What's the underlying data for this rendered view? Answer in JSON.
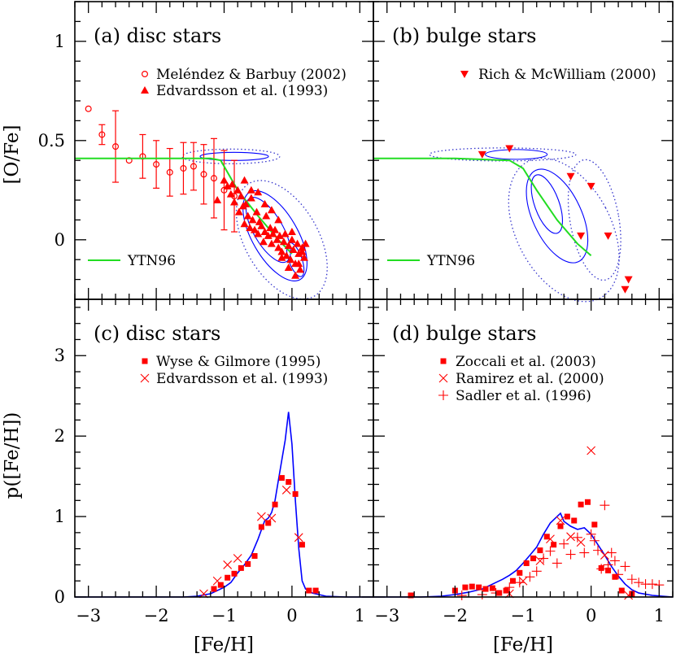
{
  "figure": {
    "xlabel_bottom": "[Fe/H]",
    "ylabel_top": "[O/Fe]",
    "ylabel_bottom": "p([Fe/H])",
    "colors": {
      "model_line": "#0000ff",
      "contour_dotted": "#3333cc",
      "data_points": "#ff0000",
      "ytn96": "#22dd22",
      "frame": "#000000"
    }
  },
  "chart_data": [
    {
      "id": "a",
      "type": "scatter",
      "title": "(a) disc stars",
      "xlabel": "",
      "ylabel": "[O/Fe]",
      "xlim": [
        -3.2,
        1.2
      ],
      "ylim": [
        -0.3,
        1.2
      ],
      "xticks": [
        "−3",
        "−2",
        "−1",
        "0",
        "1"
      ],
      "yticks": [
        "0",
        "0.5",
        "1"
      ],
      "legend_placement": "top-right",
      "series": [
        {
          "name": "Meléndez & Barbuy (2002)",
          "marker": "open-circle",
          "x": [
            -3.0,
            -2.8,
            -2.6,
            -2.4,
            -2.2,
            -2.0,
            -1.8,
            -1.6,
            -1.45,
            -1.3,
            -1.15,
            -1.0,
            -0.85
          ],
          "y": [
            0.66,
            0.53,
            0.47,
            0.4,
            0.42,
            0.38,
            0.34,
            0.36,
            0.37,
            0.33,
            0.31,
            0.25,
            0.22
          ],
          "err": [
            0.0,
            0.05,
            0.18,
            0.0,
            0.11,
            0.12,
            0.12,
            0.13,
            0.12,
            0.15,
            0.2,
            0.2,
            0.18
          ]
        },
        {
          "name": "Edvardsson et al. (1993)",
          "marker": "filled-triangle",
          "x": [
            -1.1,
            -1.0,
            -0.95,
            -0.9,
            -0.88,
            -0.85,
            -0.8,
            -0.78,
            -0.75,
            -0.72,
            -0.7,
            -0.68,
            -0.65,
            -0.62,
            -0.6,
            -0.58,
            -0.55,
            -0.52,
            -0.5,
            -0.48,
            -0.45,
            -0.42,
            -0.4,
            -0.38,
            -0.35,
            -0.32,
            -0.3,
            -0.28,
            -0.25,
            -0.22,
            -0.2,
            -0.18,
            -0.15,
            -0.12,
            -0.1,
            -0.08,
            -0.05,
            -0.02,
            0.0,
            0.02,
            0.05,
            0.08,
            0.1,
            0.12,
            0.15,
            0.18,
            0.2,
            -0.6,
            -0.4,
            -0.2,
            0.0,
            0.1,
            -0.3,
            -0.5,
            -0.7,
            -0.15,
            0.05,
            -0.05,
            0.15
          ],
          "y": [
            0.2,
            0.3,
            0.27,
            0.23,
            0.28,
            0.19,
            0.25,
            0.14,
            0.22,
            0.17,
            0.08,
            0.18,
            0.12,
            0.06,
            0.21,
            0.1,
            0.05,
            0.14,
            0.03,
            0.09,
            0.07,
            -0.01,
            0.04,
            0.12,
            0.02,
            0.06,
            -0.02,
            0.03,
            0.05,
            0.0,
            -0.04,
            0.02,
            -0.06,
            -0.01,
            0.03,
            -0.08,
            -0.03,
            -0.1,
            0.0,
            -0.05,
            -0.12,
            -0.02,
            -0.07,
            -0.15,
            -0.04,
            -0.09,
            -0.02,
            0.25,
            0.18,
            0.1,
            0.04,
            -0.12,
            0.15,
            0.24,
            0.3,
            -0.09,
            -0.18,
            -0.14,
            -0.06
          ]
        }
      ],
      "ytn96_line": {
        "name": "YTN96",
        "x": [
          -3.2,
          -2.0,
          -1.2,
          -1.05,
          -0.8,
          -0.5,
          -0.2,
          0.0
        ],
        "y": [
          0.41,
          0.41,
          0.41,
          0.4,
          0.25,
          0.12,
          0.0,
          -0.07
        ]
      }
    },
    {
      "id": "b",
      "type": "scatter",
      "title": "(b) bulge stars",
      "xlabel": "",
      "ylabel": "",
      "xlim": [
        -3.2,
        1.2
      ],
      "ylim": [
        -0.3,
        1.2
      ],
      "xticks": [
        "−3",
        "−2",
        "−1",
        "0",
        "1"
      ],
      "legend_placement": "top-right",
      "series": [
        {
          "name": "Rich & McWilliam (2000)",
          "marker": "filled-down-triangle",
          "x": [
            -1.6,
            -1.2,
            -0.3,
            0.0,
            -0.15,
            0.25,
            0.55,
            0.5
          ],
          "y": [
            0.43,
            0.46,
            0.32,
            0.27,
            0.02,
            0.02,
            -0.2,
            -0.25
          ]
        }
      ],
      "ytn96_line": {
        "name": "YTN96",
        "x": [
          -3.2,
          -2.0,
          -1.2,
          -1.0,
          -0.8,
          -0.5,
          -0.2,
          0.0
        ],
        "y": [
          0.41,
          0.41,
          0.4,
          0.36,
          0.25,
          0.1,
          -0.02,
          -0.08
        ]
      }
    },
    {
      "id": "c",
      "type": "line",
      "title": "(c) disc stars",
      "xlabel": "[Fe/H]",
      "ylabel": "p([Fe/H])",
      "xlim": [
        -3.2,
        1.2
      ],
      "ylim": [
        0,
        3.7
      ],
      "xticks": [
        "−3",
        "−2",
        "−1",
        "0",
        "1"
      ],
      "yticks": [
        "0",
        "1",
        "2",
        "3"
      ],
      "legend_placement": "top-right",
      "model_curve": {
        "x": [
          -3.2,
          -2.0,
          -1.6,
          -1.4,
          -1.2,
          -1.0,
          -0.9,
          -0.8,
          -0.7,
          -0.6,
          -0.5,
          -0.4,
          -0.35,
          -0.3,
          -0.25,
          -0.2,
          -0.15,
          -0.1,
          -0.05,
          0.0,
          0.05,
          0.1,
          0.15,
          0.2,
          0.3,
          0.5,
          0.8,
          1.2
        ],
        "y": [
          0.0,
          0.0,
          0.0,
          0.01,
          0.04,
          0.12,
          0.18,
          0.3,
          0.4,
          0.52,
          0.72,
          0.95,
          0.98,
          1.05,
          1.2,
          1.45,
          1.7,
          1.95,
          2.3,
          1.9,
          1.2,
          0.6,
          0.2,
          0.1,
          0.05,
          0.01,
          0.0,
          0.0
        ]
      },
      "series": [
        {
          "name": "Wyse & Gilmore (1995)",
          "marker": "filled-square",
          "x": [
            -1.15,
            -1.05,
            -0.95,
            -0.85,
            -0.75,
            -0.65,
            -0.55,
            -0.45,
            -0.35,
            -0.25,
            -0.15,
            -0.05,
            0.05,
            0.15,
            0.25,
            0.35
          ],
          "y": [
            0.1,
            0.15,
            0.24,
            0.29,
            0.36,
            0.41,
            0.51,
            0.87,
            0.92,
            1.15,
            1.48,
            1.43,
            1.28,
            0.65,
            0.08,
            0.08
          ]
        },
        {
          "name": "Edvardsson et al. (1993)",
          "marker": "cross",
          "x": [
            -1.3,
            -1.1,
            -0.95,
            -0.8,
            -0.45,
            -0.3,
            -0.08,
            0.1
          ],
          "y": [
            0.04,
            0.2,
            0.4,
            0.48,
            1.0,
            0.98,
            1.33,
            0.74
          ]
        }
      ]
    },
    {
      "id": "d",
      "type": "line",
      "title": "(d) bulge stars",
      "xlabel": "[Fe/H]",
      "ylabel": "",
      "xlim": [
        -3.2,
        1.2
      ],
      "ylim": [
        0,
        3.7
      ],
      "xticks": [
        "−3",
        "−2",
        "−1",
        "0",
        "1"
      ],
      "legend_placement": "top-right",
      "model_curve": {
        "x": [
          -3.2,
          -2.5,
          -2.2,
          -2.0,
          -1.8,
          -1.6,
          -1.5,
          -1.4,
          -1.3,
          -1.2,
          -1.1,
          -1.0,
          -0.9,
          -0.8,
          -0.7,
          -0.6,
          -0.5,
          -0.45,
          -0.4,
          -0.3,
          -0.2,
          -0.1,
          0.0,
          0.1,
          0.2,
          0.3,
          0.4,
          0.5,
          0.6,
          0.7,
          0.9,
          1.2
        ],
        "y": [
          0.0,
          0.0,
          0.01,
          0.03,
          0.06,
          0.1,
          0.14,
          0.18,
          0.22,
          0.27,
          0.33,
          0.42,
          0.52,
          0.62,
          0.78,
          0.92,
          1.0,
          1.04,
          0.94,
          0.88,
          0.84,
          0.86,
          0.78,
          0.65,
          0.52,
          0.38,
          0.26,
          0.16,
          0.09,
          0.05,
          0.02,
          0.0
        ]
      },
      "series": [
        {
          "name": "Zoccali et al. (2003)",
          "marker": "filled-square",
          "x": [
            -2.65,
            -2.0,
            -1.85,
            -1.75,
            -1.65,
            -1.55,
            -1.45,
            -1.35,
            -1.25,
            -1.15,
            -1.05,
            -0.95,
            -0.85,
            -0.75,
            -0.65,
            -0.55,
            -0.45,
            -0.35,
            -0.25,
            -0.15,
            -0.05,
            0.05,
            0.15,
            0.25,
            0.35,
            0.45,
            0.6
          ],
          "y": [
            0.02,
            0.08,
            0.12,
            0.13,
            0.12,
            0.1,
            0.11,
            0.05,
            0.08,
            0.2,
            0.3,
            0.42,
            0.48,
            0.58,
            0.75,
            0.65,
            0.88,
            1.0,
            0.95,
            1.15,
            1.18,
            0.9,
            0.36,
            0.33,
            0.25,
            0.08,
            0.04
          ]
        },
        {
          "name": "Ramirez et al. (2000)",
          "marker": "cross",
          "x": [
            -1.2,
            -1.0,
            -0.75,
            -0.6,
            -0.45,
            -0.3,
            -0.15,
            0.0,
            0.2,
            0.55
          ],
          "y": [
            0.04,
            0.2,
            0.45,
            0.72,
            0.95,
            0.75,
            0.68,
            1.82,
            0.52,
            0.02
          ]
        },
        {
          "name": "Sadler et al. (1996)",
          "marker": "plus",
          "x": [
            -1.9,
            -1.6,
            -1.4,
            -1.2,
            -1.05,
            -0.9,
            -0.8,
            -0.7,
            -0.6,
            -0.5,
            -0.4,
            -0.3,
            -0.2,
            -0.1,
            0.0,
            0.05,
            0.1,
            0.15,
            0.2,
            0.25,
            0.3,
            0.35,
            0.4,
            0.5,
            0.6,
            0.7,
            0.8,
            0.9,
            1.0
          ],
          "y": [
            0.02,
            0.03,
            0.05,
            0.12,
            0.18,
            0.25,
            0.32,
            0.48,
            0.57,
            0.42,
            0.66,
            0.53,
            0.74,
            0.55,
            0.78,
            0.7,
            0.58,
            0.35,
            1.14,
            0.4,
            0.55,
            0.45,
            0.28,
            0.38,
            0.22,
            0.18,
            0.16,
            0.16,
            0.15
          ]
        }
      ]
    }
  ]
}
